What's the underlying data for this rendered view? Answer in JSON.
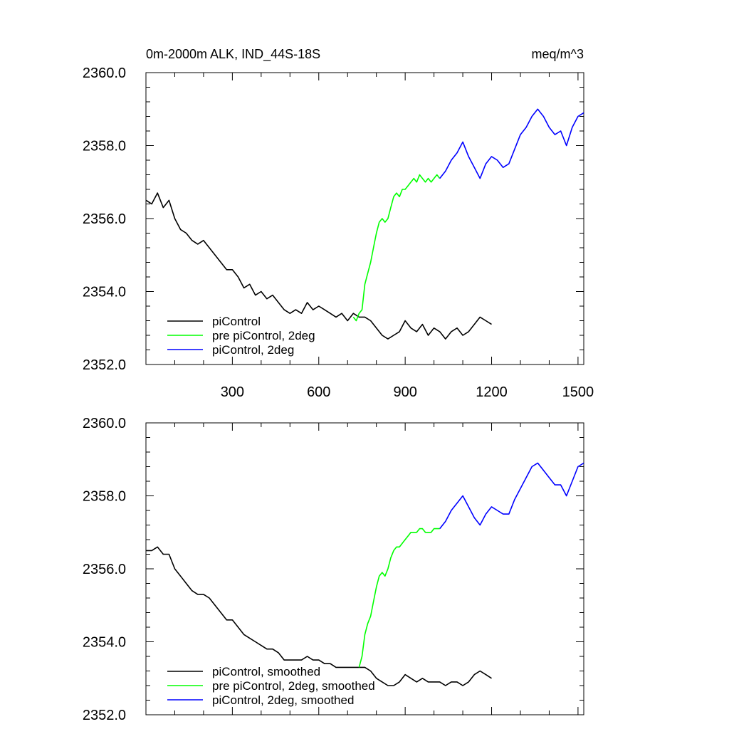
{
  "chart_data": [
    {
      "type": "line",
      "title": "0m-2000m ALK, IND_44S-18S",
      "units": "meq/m^3",
      "xlim": [
        0,
        1520
      ],
      "ylim": [
        2352,
        2360
      ],
      "x_ticks": [
        300,
        600,
        900,
        1200,
        1500
      ],
      "x_tick_labels": [
        "300",
        "600",
        "900",
        "1200",
        "1500"
      ],
      "y_ticks": [
        2352,
        2354,
        2356,
        2358,
        2360
      ],
      "y_tick_labels": [
        "2352.0",
        "2354.0",
        "2356.0",
        "2358.0",
        "2360.0"
      ],
      "legend_position": "bottom-left",
      "series": [
        {
          "name": "piControl",
          "color": "#000000",
          "x": [
            1,
            20,
            40,
            60,
            80,
            100,
            120,
            140,
            160,
            180,
            200,
            220,
            240,
            260,
            280,
            300,
            320,
            340,
            360,
            380,
            400,
            420,
            440,
            460,
            480,
            500,
            520,
            540,
            560,
            580,
            600,
            620,
            640,
            660,
            680,
            700,
            720,
            740,
            760,
            780,
            800,
            820,
            840,
            860,
            880,
            900,
            920,
            940,
            960,
            980,
            1000,
            1020,
            1040,
            1060,
            1080,
            1100,
            1120,
            1140,
            1160,
            1180,
            1200
          ],
          "y": [
            2356.5,
            2356.4,
            2356.7,
            2356.3,
            2356.5,
            2356.0,
            2355.7,
            2355.6,
            2355.4,
            2355.3,
            2355.4,
            2355.2,
            2355.0,
            2354.8,
            2354.6,
            2354.6,
            2354.4,
            2354.1,
            2354.2,
            2353.9,
            2354.0,
            2353.8,
            2353.9,
            2353.7,
            2353.5,
            2353.4,
            2353.5,
            2353.4,
            2353.7,
            2353.5,
            2353.6,
            2353.5,
            2353.4,
            2353.3,
            2353.4,
            2353.2,
            2353.4,
            2353.3,
            2353.3,
            2353.2,
            2353.0,
            2352.8,
            2352.7,
            2352.8,
            2352.9,
            2353.2,
            2353.0,
            2352.9,
            2353.1,
            2352.8,
            2353.0,
            2352.9,
            2352.7,
            2352.9,
            2353.0,
            2352.8,
            2352.9,
            2353.1,
            2353.3,
            2353.2,
            2353.1
          ]
        },
        {
          "name": "pre piControl, 2deg",
          "color": "#00ff00",
          "x": [
            720,
            730,
            740,
            750,
            760,
            770,
            780,
            790,
            800,
            810,
            820,
            830,
            840,
            850,
            860,
            870,
            880,
            890,
            900,
            910,
            920,
            930,
            940,
            950,
            960,
            970,
            980,
            990,
            1000,
            1010,
            1020
          ],
          "y": [
            2353.3,
            2353.2,
            2353.4,
            2353.5,
            2354.2,
            2354.5,
            2354.8,
            2355.2,
            2355.6,
            2355.9,
            2356.0,
            2355.9,
            2356.0,
            2356.3,
            2356.6,
            2356.7,
            2356.6,
            2356.8,
            2356.8,
            2356.9,
            2357.0,
            2357.1,
            2357.0,
            2357.2,
            2357.1,
            2357.0,
            2357.1,
            2357.0,
            2357.1,
            2357.2,
            2357.1
          ]
        },
        {
          "name": "piControl, 2deg",
          "color": "#0000ff",
          "x": [
            1020,
            1040,
            1060,
            1080,
            1100,
            1120,
            1140,
            1160,
            1180,
            1200,
            1220,
            1240,
            1260,
            1280,
            1300,
            1320,
            1340,
            1360,
            1380,
            1400,
            1420,
            1440,
            1460,
            1480,
            1500,
            1520
          ],
          "y": [
            2357.1,
            2357.3,
            2357.6,
            2357.8,
            2358.1,
            2357.7,
            2357.4,
            2357.1,
            2357.5,
            2357.7,
            2357.6,
            2357.4,
            2357.5,
            2357.9,
            2358.3,
            2358.5,
            2358.8,
            2359.0,
            2358.8,
            2358.5,
            2358.3,
            2358.4,
            2358.0,
            2358.5,
            2358.8,
            2358.9
          ]
        }
      ]
    },
    {
      "type": "line",
      "title": "",
      "xlim": [
        0,
        1520
      ],
      "ylim": [
        2352,
        2360
      ],
      "x_ticks": [
        300,
        600,
        900,
        1200,
        1500
      ],
      "y_ticks": [
        2352,
        2354,
        2356,
        2358,
        2360
      ],
      "y_tick_labels": [
        "2352.0",
        "2354.0",
        "2356.0",
        "2358.0",
        "2360.0"
      ],
      "legend_position": "bottom-left",
      "series": [
        {
          "name": "piControl, smoothed",
          "color": "#000000",
          "x": [
            1,
            20,
            40,
            60,
            80,
            100,
            120,
            140,
            160,
            180,
            200,
            220,
            240,
            260,
            280,
            300,
            320,
            340,
            360,
            380,
            400,
            420,
            440,
            460,
            480,
            500,
            520,
            540,
            560,
            580,
            600,
            620,
            640,
            660,
            680,
            700,
            720,
            740,
            760,
            780,
            800,
            820,
            840,
            860,
            880,
            900,
            920,
            940,
            960,
            980,
            1000,
            1020,
            1040,
            1060,
            1080,
            1100,
            1120,
            1140,
            1160,
            1180,
            1200
          ],
          "y": [
            2356.5,
            2356.5,
            2356.6,
            2356.4,
            2356.4,
            2356.0,
            2355.8,
            2355.6,
            2355.4,
            2355.3,
            2355.3,
            2355.2,
            2355.0,
            2354.8,
            2354.6,
            2354.6,
            2354.4,
            2354.2,
            2354.1,
            2354.0,
            2353.9,
            2353.8,
            2353.8,
            2353.7,
            2353.5,
            2353.5,
            2353.5,
            2353.5,
            2353.6,
            2353.5,
            2353.5,
            2353.4,
            2353.4,
            2353.3,
            2353.3,
            2353.3,
            2353.3,
            2353.3,
            2353.3,
            2353.2,
            2353.0,
            2352.9,
            2352.8,
            2352.8,
            2352.9,
            2353.1,
            2353.0,
            2352.9,
            2353.0,
            2352.9,
            2352.9,
            2352.9,
            2352.8,
            2352.9,
            2352.9,
            2352.8,
            2352.9,
            2353.1,
            2353.2,
            2353.1,
            2353.0
          ]
        },
        {
          "name": "pre piControl, 2deg, smoothed",
          "color": "#00ff00",
          "x": [
            740,
            750,
            760,
            770,
            780,
            790,
            800,
            810,
            820,
            830,
            840,
            850,
            860,
            870,
            880,
            890,
            900,
            910,
            920,
            930,
            940,
            950,
            960,
            970,
            980,
            990,
            1000,
            1010,
            1020
          ],
          "y": [
            2353.3,
            2353.6,
            2354.2,
            2354.5,
            2354.7,
            2355.1,
            2355.5,
            2355.8,
            2355.9,
            2355.8,
            2356.0,
            2356.3,
            2356.5,
            2356.6,
            2356.6,
            2356.7,
            2356.8,
            2356.9,
            2357.0,
            2357.0,
            2357.0,
            2357.1,
            2357.1,
            2357.0,
            2357.0,
            2357.0,
            2357.1,
            2357.1,
            2357.1
          ]
        },
        {
          "name": "piControl, 2deg, smoothed",
          "color": "#0000ff",
          "x": [
            1020,
            1040,
            1060,
            1080,
            1100,
            1120,
            1140,
            1160,
            1180,
            1200,
            1220,
            1240,
            1260,
            1280,
            1300,
            1320,
            1340,
            1360,
            1380,
            1400,
            1420,
            1440,
            1460,
            1480,
            1500,
            1520
          ],
          "y": [
            2357.1,
            2357.3,
            2357.6,
            2357.8,
            2358.0,
            2357.7,
            2357.4,
            2357.2,
            2357.5,
            2357.7,
            2357.6,
            2357.5,
            2357.5,
            2357.9,
            2358.2,
            2358.5,
            2358.8,
            2358.9,
            2358.7,
            2358.5,
            2358.3,
            2358.3,
            2358.0,
            2358.4,
            2358.8,
            2358.9
          ]
        }
      ]
    }
  ]
}
